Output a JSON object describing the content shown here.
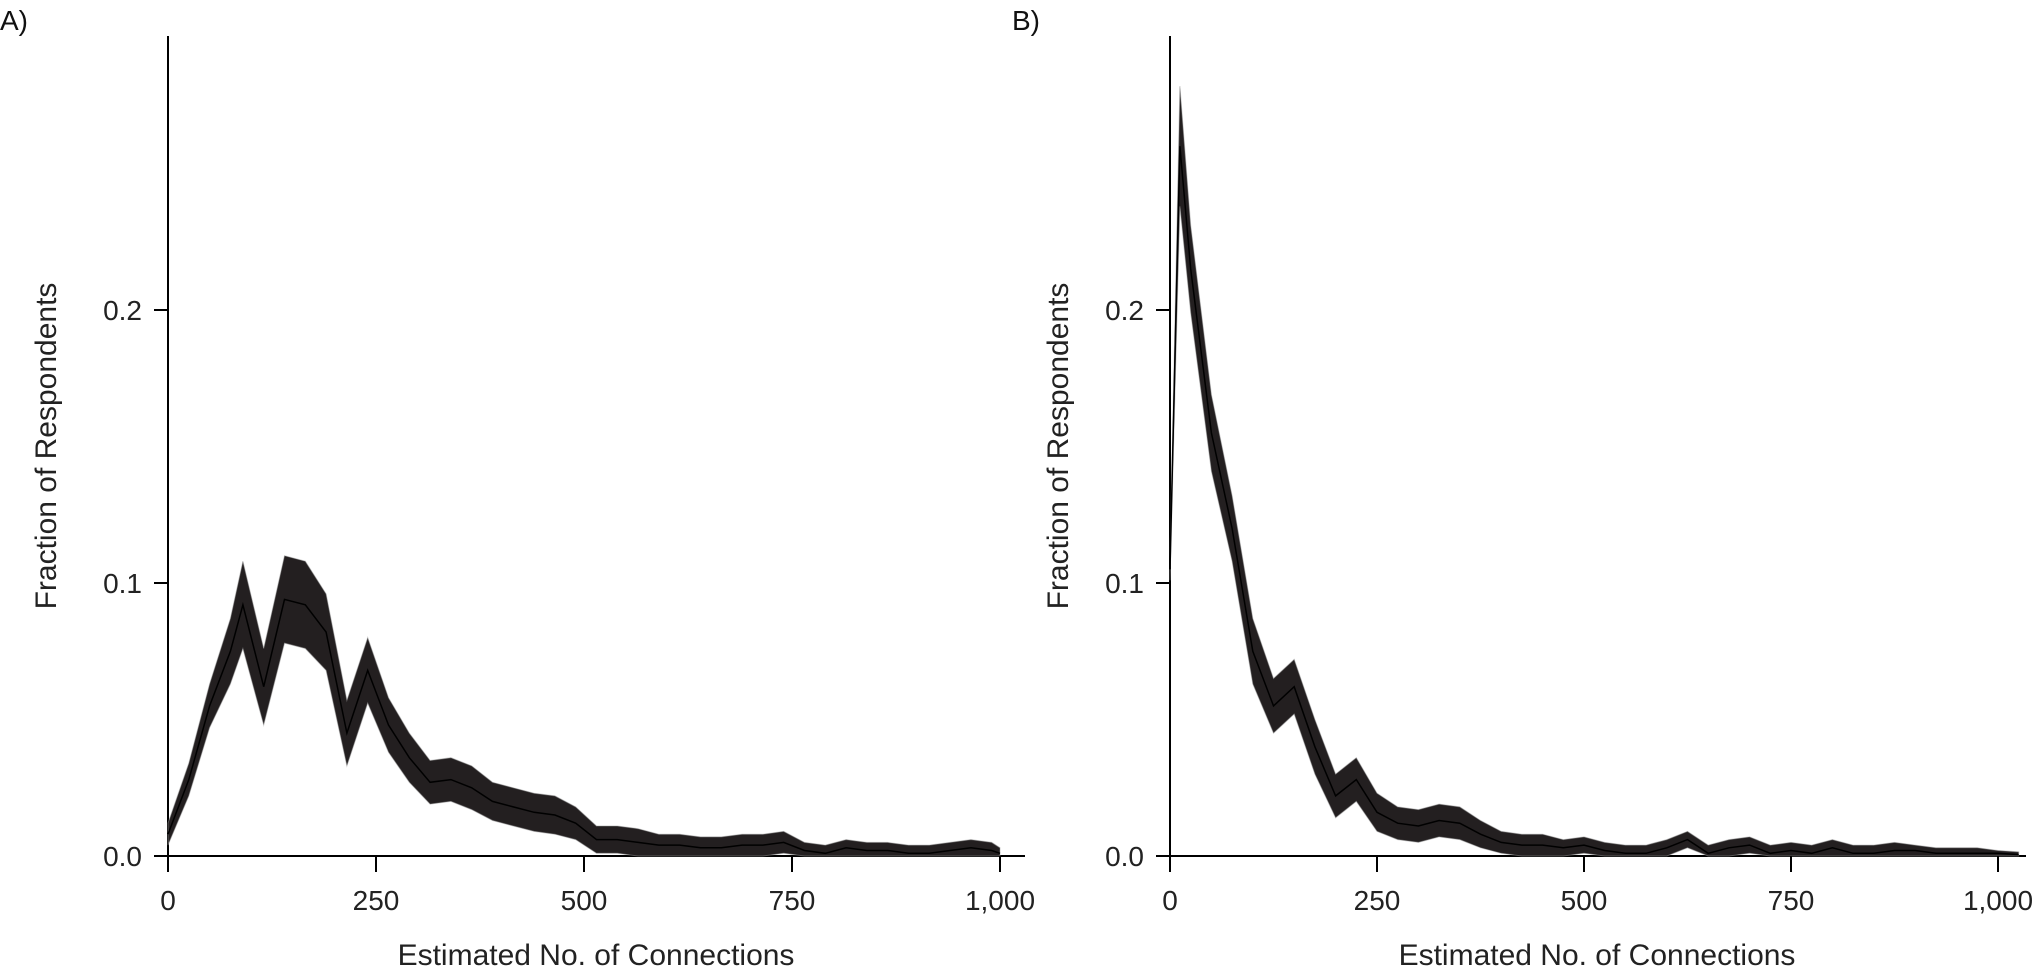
{
  "chart_data": [
    {
      "type": "area",
      "panel_label": "A)",
      "xlabel": "Estimated No. of Connections",
      "ylabel": "Fraction of Respondents",
      "xlim": [
        0,
        1030
      ],
      "ylim": [
        0,
        0.3
      ],
      "xticks": [
        0,
        250,
        500,
        750,
        1000
      ],
      "xtick_labels": [
        "0",
        "250",
        "500",
        "750",
        "1,000"
      ],
      "yticks": [
        0.0,
        0.1,
        0.2
      ],
      "ytick_labels": [
        "0.0",
        "0.1",
        "0.2"
      ],
      "grid": false,
      "series": [
        {
          "x": [
            0,
            25,
            50,
            75,
            90,
            115,
            140,
            165,
            190,
            215,
            240,
            265,
            290,
            315,
            340,
            365,
            390,
            415,
            440,
            465,
            490,
            515,
            540,
            565,
            590,
            615,
            640,
            665,
            690,
            715,
            740,
            765,
            790,
            815,
            840,
            865,
            890,
            915,
            940,
            965,
            990,
            1000
          ],
          "values": [
            0.008,
            0.028,
            0.055,
            0.075,
            0.092,
            0.062,
            0.094,
            0.092,
            0.082,
            0.045,
            0.068,
            0.048,
            0.036,
            0.027,
            0.028,
            0.025,
            0.02,
            0.018,
            0.016,
            0.015,
            0.012,
            0.006,
            0.006,
            0.005,
            0.004,
            0.004,
            0.003,
            0.003,
            0.004,
            0.004,
            0.005,
            0.002,
            0.001,
            0.003,
            0.002,
            0.002,
            0.001,
            0.001,
            0.002,
            0.003,
            0.002,
            0.001
          ],
          "spread": [
            0.004,
            0.006,
            0.008,
            0.012,
            0.016,
            0.014,
            0.016,
            0.016,
            0.014,
            0.012,
            0.012,
            0.01,
            0.009,
            0.008,
            0.008,
            0.008,
            0.007,
            0.007,
            0.007,
            0.007,
            0.006,
            0.005,
            0.005,
            0.005,
            0.004,
            0.004,
            0.004,
            0.004,
            0.004,
            0.004,
            0.004,
            0.003,
            0.003,
            0.003,
            0.003,
            0.003,
            0.003,
            0.003,
            0.003,
            0.003,
            0.003,
            0.002
          ],
          "color": "#231f20"
        }
      ]
    },
    {
      "type": "area",
      "panel_label": "B)",
      "xlabel": "Estimated No. of Connections",
      "ylabel": "Fraction of Respondents",
      "xlim": [
        0,
        1030
      ],
      "ylim": [
        0,
        0.3
      ],
      "xticks": [
        0,
        250,
        500,
        750,
        1000
      ],
      "xtick_labels": [
        "0",
        "250",
        "500",
        "750",
        "1,000"
      ],
      "yticks": [
        0.0,
        0.1,
        0.2
      ],
      "ytick_labels": [
        "0.0",
        "0.1",
        "0.2"
      ],
      "grid": false,
      "series": [
        {
          "x": [
            0,
            12,
            25,
            50,
            75,
            100,
            125,
            150,
            175,
            200,
            225,
            250,
            275,
            300,
            325,
            350,
            375,
            400,
            425,
            450,
            475,
            500,
            525,
            550,
            575,
            600,
            625,
            650,
            675,
            700,
            725,
            750,
            775,
            800,
            825,
            850,
            875,
            900,
            925,
            950,
            975,
            1000,
            1025
          ],
          "values": [
            0.105,
            0.26,
            0.215,
            0.155,
            0.12,
            0.075,
            0.055,
            0.062,
            0.04,
            0.022,
            0.028,
            0.016,
            0.012,
            0.011,
            0.013,
            0.012,
            0.008,
            0.005,
            0.004,
            0.004,
            0.003,
            0.004,
            0.002,
            0.001,
            0.001,
            0.003,
            0.006,
            0.001,
            0.003,
            0.004,
            0.001,
            0.002,
            0.001,
            0.003,
            0.001,
            0.001,
            0.002,
            0.002,
            0.001,
            0.001,
            0.001,
            0.001,
            0.0005
          ],
          "spread": [
            0.004,
            0.022,
            0.016,
            0.014,
            0.012,
            0.012,
            0.01,
            0.01,
            0.01,
            0.008,
            0.008,
            0.007,
            0.006,
            0.006,
            0.006,
            0.006,
            0.005,
            0.004,
            0.004,
            0.004,
            0.003,
            0.003,
            0.003,
            0.003,
            0.003,
            0.003,
            0.003,
            0.003,
            0.003,
            0.003,
            0.003,
            0.003,
            0.003,
            0.003,
            0.003,
            0.003,
            0.003,
            0.002,
            0.002,
            0.002,
            0.002,
            0.001,
            0.001
          ],
          "color": "#231f20"
        }
      ]
    }
  ]
}
